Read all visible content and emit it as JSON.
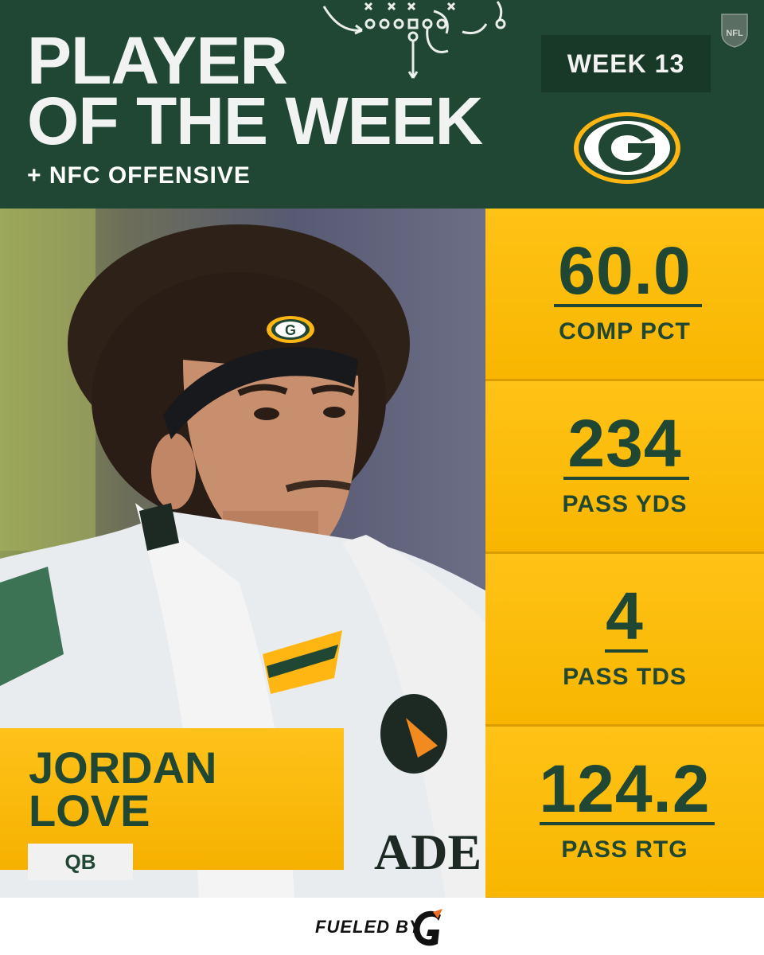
{
  "header": {
    "title_line1": "PLAYER",
    "title_line2": "OF THE WEEK",
    "subtitle": "+ NFC OFFENSIVE",
    "week": "WEEK 13",
    "team_logo_icon": "packers-g-logo-icon",
    "league_icon": "nfl-shield-icon"
  },
  "player": {
    "first_name": "JORDAN",
    "last_name": "LOVE",
    "position": "QB"
  },
  "stats": [
    {
      "value": "60.0",
      "label": "COMP PCT"
    },
    {
      "value": "234",
      "label": "PASS YDS"
    },
    {
      "value": "4",
      "label": "PASS TDS"
    },
    {
      "value": "124.2",
      "label": "PASS RTG"
    }
  ],
  "footer": {
    "sponsor_text": "FUELED BY",
    "sponsor_icon": "gatorade-g-icon"
  },
  "colors": {
    "green": "#1f4733",
    "dark_green": "#183828",
    "gold": "#ffb612",
    "white": "#ffffff"
  }
}
